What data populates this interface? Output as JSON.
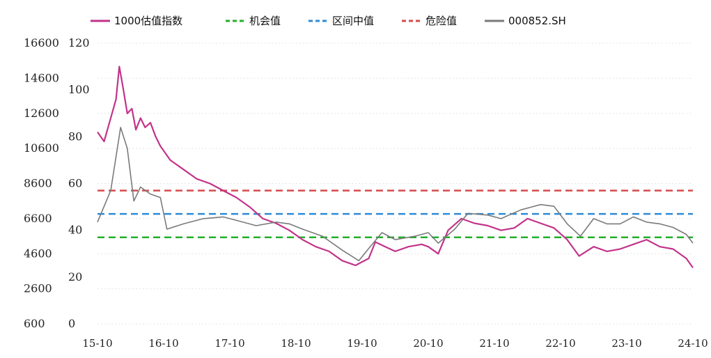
{
  "chart_data": {
    "type": "line",
    "title": "",
    "legend": {
      "placement": "top",
      "entries": [
        {
          "name": "1000估值指数",
          "color": "#c2338a",
          "style": "solid"
        },
        {
          "name": "机会值",
          "color": "#22b02a",
          "style": "dashed"
        },
        {
          "name": "区间中值",
          "color": "#2e8bd6",
          "style": "dashed"
        },
        {
          "name": "危险值",
          "color": "#d64a4a",
          "style": "dashed"
        },
        {
          "name": "000852.SH",
          "color": "#7a7a7a",
          "style": "solid"
        }
      ]
    },
    "y_left": {
      "ticks": [
        16600,
        14600,
        12600,
        10600,
        8600,
        6600,
        4600,
        2600,
        600
      ],
      "range": [
        600,
        16600
      ]
    },
    "y_right": {
      "ticks": [
        120,
        100,
        80,
        60,
        40,
        20,
        0
      ],
      "range": [
        0,
        120
      ]
    },
    "x": {
      "ticks": [
        "15-10",
        "16-10",
        "17-10",
        "18-10",
        "19-10",
        "20-10",
        "21-10",
        "22-10",
        "23-10",
        "24-10"
      ],
      "range": [
        2015.0,
        2024.0
      ]
    },
    "reference_lines": {
      "opportunity": 37,
      "median": 47,
      "danger": 57
    },
    "series": [
      {
        "name": "1000估值指数",
        "axis": "right",
        "color": "#c2338a",
        "points": [
          [
            2015.0,
            82
          ],
          [
            2015.1,
            78
          ],
          [
            2015.2,
            88
          ],
          [
            2015.28,
            96
          ],
          [
            2015.33,
            110
          ],
          [
            2015.38,
            102
          ],
          [
            2015.45,
            90
          ],
          [
            2015.52,
            92
          ],
          [
            2015.58,
            83
          ],
          [
            2015.65,
            88
          ],
          [
            2015.72,
            84
          ],
          [
            2015.8,
            86
          ],
          [
            2015.88,
            80
          ],
          [
            2015.95,
            76
          ],
          [
            2016.1,
            70
          ],
          [
            2016.3,
            66
          ],
          [
            2016.5,
            62
          ],
          [
            2016.7,
            60
          ],
          [
            2016.9,
            57
          ],
          [
            2017.1,
            54
          ],
          [
            2017.3,
            50
          ],
          [
            2017.5,
            45
          ],
          [
            2017.7,
            43
          ],
          [
            2017.9,
            40
          ],
          [
            2018.1,
            36
          ],
          [
            2018.3,
            33
          ],
          [
            2018.5,
            31
          ],
          [
            2018.7,
            27
          ],
          [
            2018.9,
            25
          ],
          [
            2019.1,
            28
          ],
          [
            2019.2,
            35
          ],
          [
            2019.35,
            33
          ],
          [
            2019.5,
            31
          ],
          [
            2019.7,
            33
          ],
          [
            2019.9,
            34
          ],
          [
            2020.0,
            33
          ],
          [
            2020.15,
            30
          ],
          [
            2020.3,
            40
          ],
          [
            2020.5,
            45
          ],
          [
            2020.7,
            43
          ],
          [
            2020.9,
            42
          ],
          [
            2021.1,
            40
          ],
          [
            2021.3,
            41
          ],
          [
            2021.5,
            45
          ],
          [
            2021.7,
            43
          ],
          [
            2021.9,
            41
          ],
          [
            2022.1,
            36
          ],
          [
            2022.28,
            29
          ],
          [
            2022.5,
            33
          ],
          [
            2022.7,
            31
          ],
          [
            2022.9,
            32
          ],
          [
            2023.1,
            34
          ],
          [
            2023.3,
            36
          ],
          [
            2023.5,
            33
          ],
          [
            2023.7,
            32
          ],
          [
            2023.9,
            28
          ],
          [
            2024.0,
            24
          ]
        ]
      },
      {
        "name": "000852.SH",
        "axis": "left",
        "color": "#7a7a7a",
        "points": [
          [
            2015.0,
            6400
          ],
          [
            2015.2,
            8200
          ],
          [
            2015.35,
            11800
          ],
          [
            2015.45,
            10600
          ],
          [
            2015.55,
            7600
          ],
          [
            2015.65,
            8400
          ],
          [
            2015.8,
            8000
          ],
          [
            2015.95,
            7800
          ],
          [
            2016.05,
            6000
          ],
          [
            2016.3,
            6300
          ],
          [
            2016.6,
            6600
          ],
          [
            2016.9,
            6700
          ],
          [
            2017.1,
            6500
          ],
          [
            2017.4,
            6200
          ],
          [
            2017.7,
            6400
          ],
          [
            2017.9,
            6300
          ],
          [
            2018.1,
            6000
          ],
          [
            2018.4,
            5600
          ],
          [
            2018.7,
            4800
          ],
          [
            2018.95,
            4200
          ],
          [
            2019.1,
            4900
          ],
          [
            2019.3,
            5800
          ],
          [
            2019.5,
            5400
          ],
          [
            2019.8,
            5600
          ],
          [
            2020.0,
            5800
          ],
          [
            2020.15,
            5200
          ],
          [
            2020.4,
            6000
          ],
          [
            2020.6,
            6900
          ],
          [
            2020.9,
            6800
          ],
          [
            2021.1,
            6600
          ],
          [
            2021.4,
            7100
          ],
          [
            2021.7,
            7400
          ],
          [
            2021.9,
            7300
          ],
          [
            2022.1,
            6300
          ],
          [
            2022.3,
            5600
          ],
          [
            2022.5,
            6600
          ],
          [
            2022.7,
            6300
          ],
          [
            2022.9,
            6300
          ],
          [
            2023.1,
            6700
          ],
          [
            2023.3,
            6400
          ],
          [
            2023.5,
            6300
          ],
          [
            2023.7,
            6100
          ],
          [
            2023.9,
            5700
          ],
          [
            2024.0,
            5200
          ]
        ]
      }
    ]
  }
}
